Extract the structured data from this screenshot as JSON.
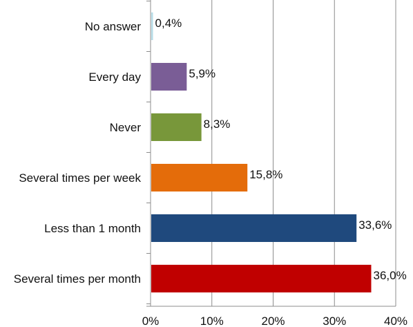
{
  "chart_data": {
    "type": "bar",
    "orientation": "horizontal",
    "title": "",
    "xlabel": "",
    "ylabel": "",
    "categories": [
      "No answer",
      "Every day",
      "Never",
      "Several times per week",
      "Less than 1 month",
      "Several times per month"
    ],
    "values": [
      0.4,
      5.9,
      8.3,
      15.8,
      33.6,
      36.0
    ],
    "value_labels": [
      "0,4%",
      "5,9%",
      "8,3%",
      "15,8%",
      "33,6%",
      "36,0%"
    ],
    "colors": [
      "#b7dde8",
      "#7a5d96",
      "#78973a",
      "#e46c0a",
      "#1f497d",
      "#c00000"
    ],
    "xlim": [
      0,
      40
    ],
    "xticks": [
      0,
      10,
      20,
      30,
      40
    ],
    "xtick_labels": [
      "0%",
      "10%",
      "20%",
      "30%",
      "40%"
    ],
    "grid": true,
    "legend": false
  }
}
